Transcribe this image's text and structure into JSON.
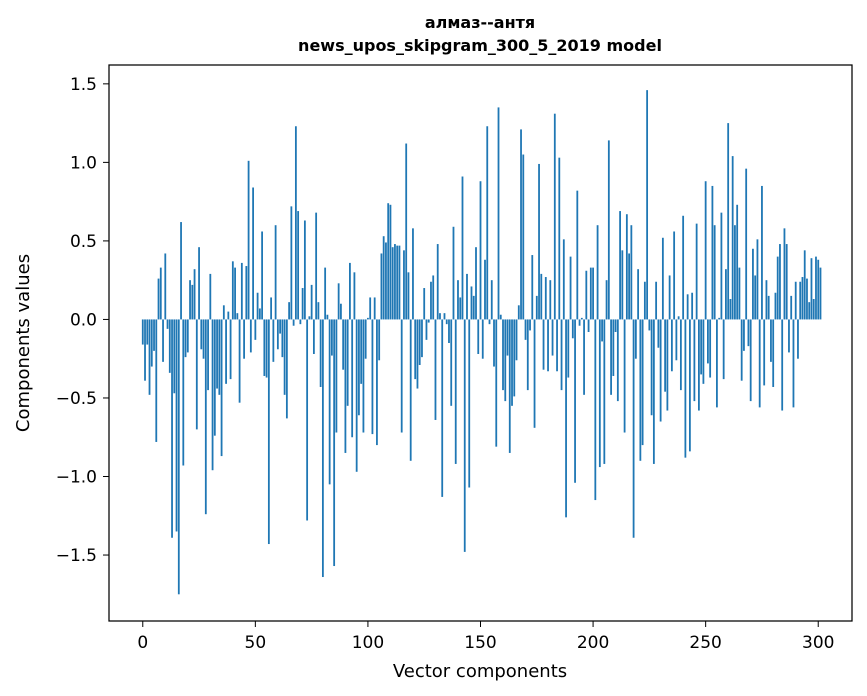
{
  "chart_data": {
    "type": "bar",
    "title": [
      "алмаз--антя",
      "news_upos_skipgram_300_5_2019 model"
    ],
    "xlabel": "Vector components",
    "ylabel": "Components values",
    "xlim": [
      -15,
      315
    ],
    "ylim": [
      -1.92,
      1.62
    ],
    "xticks": [
      0,
      50,
      100,
      150,
      200,
      250,
      300
    ],
    "yticks": [
      -1.5,
      -1.0,
      -0.5,
      0.0,
      0.5,
      1.0,
      1.5
    ],
    "xtick_labels": [
      "0",
      "50",
      "100",
      "150",
      "200",
      "250",
      "300"
    ],
    "ytick_labels": [
      "−1.5",
      "−1.0",
      "−0.5",
      "0.0",
      "0.5",
      "1.0",
      "1.5"
    ],
    "grid": false,
    "bar_color": "#1f77b4",
    "values": [
      -0.16,
      -0.39,
      -0.16,
      -0.48,
      -0.3,
      -0.2,
      -0.78,
      0.26,
      0.33,
      -0.27,
      0.42,
      -0.06,
      -0.34,
      -1.39,
      -0.47,
      -1.35,
      -1.75,
      0.62,
      -0.93,
      -0.24,
      -0.21,
      0.25,
      0.22,
      0.32,
      -0.7,
      0.46,
      -0.19,
      -0.25,
      -1.24,
      -0.45,
      0.29,
      -0.96,
      -0.74,
      -0.44,
      -0.48,
      -0.87,
      0.09,
      -0.41,
      0.05,
      -0.38,
      0.37,
      0.33,
      0.04,
      -0.53,
      0.36,
      -0.25,
      0.34,
      1.01,
      -0.21,
      0.84,
      -0.13,
      0.17,
      0.07,
      0.56,
      -0.36,
      -0.37,
      -1.43,
      0.14,
      -0.27,
      0.6,
      -0.19,
      -0.09,
      -0.24,
      -0.48,
      -0.63,
      0.11,
      0.72,
      -0.04,
      1.23,
      0.69,
      -0.03,
      0.2,
      0.63,
      -1.28,
      0.02,
      0.22,
      -0.22,
      0.68,
      0.11,
      -0.43,
      -1.64,
      0.33,
      0.03,
      -1.05,
      -0.23,
      -1.57,
      -0.72,
      0.23,
      0.1,
      -0.32,
      -0.85,
      -0.55,
      0.36,
      -0.75,
      0.3,
      -0.97,
      -0.61,
      -0.41,
      -0.72,
      -0.25,
      0.01,
      0.14,
      -0.73,
      0.14,
      -0.8,
      -0.26,
      0.42,
      0.53,
      0.49,
      0.74,
      0.73,
      0.46,
      0.48,
      0.47,
      0.47,
      -0.72,
      0.44,
      1.12,
      0.3,
      -0.9,
      0.58,
      -0.38,
      -0.44,
      -0.29,
      -0.24,
      0.2,
      -0.13,
      -0.02,
      0.24,
      0.28,
      -0.64,
      0.48,
      0.04,
      -1.13,
      0.04,
      -0.03,
      -0.15,
      -0.55,
      0.59,
      -0.92,
      0.25,
      0.14,
      0.91,
      -1.48,
      0.29,
      -1.07,
      0.21,
      0.15,
      0.46,
      -0.22,
      0.88,
      -0.25,
      0.38,
      1.23,
      -0.03,
      0.25,
      -0.3,
      -0.81,
      1.35,
      0.03,
      -0.45,
      -0.52,
      -0.23,
      -0.85,
      -0.55,
      -0.49,
      -0.26,
      0.09,
      1.21,
      1.05,
      -0.13,
      -0.45,
      -0.07,
      0.41,
      -0.69,
      0.15,
      0.99,
      0.29,
      -0.32,
      0.27,
      -0.33,
      0.25,
      -0.23,
      1.31,
      -0.33,
      1.03,
      -0.45,
      0.51,
      -1.26,
      -0.37,
      0.4,
      -0.12,
      -1.04,
      0.82,
      -0.04,
      0.01,
      -0.48,
      0.31,
      -0.08,
      0.33,
      0.33,
      -1.15,
      0.6,
      -0.94,
      -0.14,
      -0.92,
      0.25,
      1.14,
      -0.48,
      -0.36,
      -0.08,
      -0.52,
      0.69,
      0.44,
      -0.72,
      0.67,
      0.42,
      0.6,
      -1.39,
      -0.25,
      0.32,
      -0.9,
      -0.8,
      0.24,
      1.46,
      -0.07,
      -0.61,
      -0.92,
      0.24,
      -0.18,
      -0.65,
      0.52,
      -0.46,
      -0.58,
      0.28,
      -0.33,
      0.56,
      -0.26,
      0.02,
      -0.45,
      0.66,
      -0.88,
      0.16,
      -0.84,
      0.17,
      -0.52,
      0.61,
      -0.58,
      -0.35,
      -0.41,
      0.88,
      -0.28,
      -0.37,
      0.85,
      0.6,
      -0.56,
      0.01,
      0.68,
      -0.38,
      0.32,
      1.25,
      0.13,
      1.04,
      0.6,
      0.73,
      0.33,
      -0.39,
      -0.2,
      0.96,
      -0.17,
      -0.52,
      0.45,
      0.28,
      0.51,
      -0.56,
      0.85,
      -0.42,
      0.25,
      0.15,
      -0.27,
      -0.43,
      0.17,
      0.4,
      0.48,
      -0.58,
      0.58,
      0.48,
      -0.21,
      0.15,
      -0.56,
      0.24,
      -0.25,
      0.24,
      0.27,
      0.44,
      0.26,
      0.11,
      0.39,
      0.13,
      0.4,
      0.38,
      0.33
    ]
  }
}
